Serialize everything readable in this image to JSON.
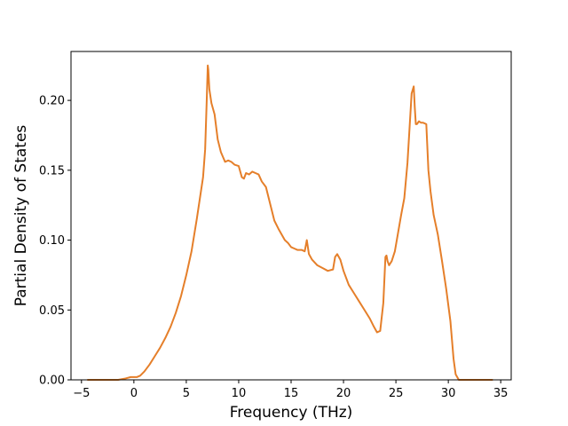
{
  "chart_data": {
    "type": "line",
    "title": "",
    "xlabel": "Frequency (THz)",
    "ylabel": "Partial Density of States",
    "xlim": [
      -6,
      36
    ],
    "ylim": [
      0,
      0.235
    ],
    "xticks": [
      -5,
      0,
      5,
      10,
      15,
      20,
      25,
      30,
      35
    ],
    "xtick_labels": [
      "−5",
      "0",
      "5",
      "10",
      "15",
      "20",
      "25",
      "30",
      "35"
    ],
    "yticks": [
      0.0,
      0.05,
      0.1,
      0.15,
      0.2
    ],
    "ytick_labels": [
      "0.00",
      "0.05",
      "0.10",
      "0.15",
      "0.20"
    ],
    "grid": false,
    "legend": "none",
    "series": [
      {
        "color": "#e57f2a",
        "x": [
          -4.4,
          -1.5,
          -0.8,
          -0.3,
          0.0,
          0.3,
          0.6,
          1.0,
          1.5,
          2.0,
          2.5,
          3.0,
          3.5,
          4.0,
          4.5,
          5.0,
          5.5,
          6.0,
          6.3,
          6.6,
          6.8,
          6.95,
          7.05,
          7.1,
          7.2,
          7.4,
          7.7,
          8.0,
          8.3,
          8.7,
          9.0,
          9.3,
          9.6,
          10.0,
          10.3,
          10.5,
          10.7,
          11.0,
          11.3,
          11.6,
          11.9,
          12.2,
          12.6,
          13.0,
          13.4,
          13.8,
          14.1,
          14.4,
          14.7,
          15.0,
          15.3,
          15.6,
          16.0,
          16.3,
          16.5,
          16.7,
          17.0,
          17.5,
          18.0,
          18.5,
          19.0,
          19.2,
          19.4,
          19.7,
          20.0,
          20.3,
          20.5,
          21.0,
          21.5,
          22.0,
          22.5,
          22.9,
          23.2,
          23.5,
          23.8,
          24.0,
          24.1,
          24.2,
          24.35,
          24.6,
          24.9,
          25.2,
          25.5,
          25.8,
          26.1,
          26.3,
          26.5,
          26.7,
          26.8,
          26.9,
          27.0,
          27.2,
          27.4,
          27.6,
          27.9,
          28.1,
          28.3,
          28.6,
          29.0,
          29.4,
          29.8,
          30.2,
          30.5,
          30.7,
          31.0,
          31.5,
          32.5,
          34.2
        ],
        "y": [
          0.0,
          0.0,
          0.001,
          0.002,
          0.002,
          0.002,
          0.003,
          0.006,
          0.011,
          0.017,
          0.023,
          0.03,
          0.038,
          0.048,
          0.06,
          0.075,
          0.092,
          0.115,
          0.13,
          0.145,
          0.165,
          0.2,
          0.225,
          0.222,
          0.208,
          0.198,
          0.19,
          0.172,
          0.163,
          0.156,
          0.157,
          0.156,
          0.154,
          0.153,
          0.145,
          0.144,
          0.148,
          0.147,
          0.149,
          0.148,
          0.147,
          0.142,
          0.138,
          0.126,
          0.114,
          0.108,
          0.104,
          0.1,
          0.098,
          0.095,
          0.094,
          0.093,
          0.093,
          0.092,
          0.1,
          0.09,
          0.086,
          0.082,
          0.08,
          0.078,
          0.079,
          0.088,
          0.09,
          0.086,
          0.078,
          0.072,
          0.068,
          0.062,
          0.056,
          0.05,
          0.044,
          0.038,
          0.034,
          0.035,
          0.055,
          0.088,
          0.089,
          0.085,
          0.082,
          0.085,
          0.092,
          0.105,
          0.118,
          0.13,
          0.155,
          0.18,
          0.205,
          0.21,
          0.195,
          0.183,
          0.183,
          0.185,
          0.184,
          0.184,
          0.183,
          0.15,
          0.135,
          0.118,
          0.104,
          0.085,
          0.065,
          0.042,
          0.015,
          0.004,
          0.0,
          0.0,
          0.0,
          0.0
        ]
      }
    ]
  }
}
